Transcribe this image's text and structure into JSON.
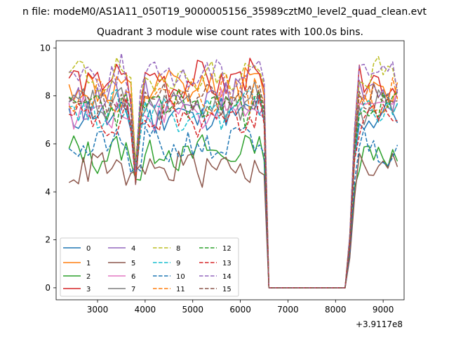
{
  "chart_data": {
    "type": "line",
    "suptitle": "n file: modeM0/AS1A11_050T19_9000005156_35989cztM0_level2_quad_clean.evt",
    "title": "Quadrant 3 module wise count rates with 100.0s bins.",
    "xlabel": "",
    "ylabel": "",
    "x_offset_label": "+3.9117e8",
    "xlim": [
      2130,
      9440
    ],
    "ylim": [
      -0.5,
      10.3
    ],
    "xticks": [
      3000,
      4000,
      5000,
      6000,
      7000,
      8000,
      9000
    ],
    "yticks": [
      0,
      2,
      4,
      6,
      8,
      10
    ],
    "legend": {
      "position": "lower-left",
      "columns": 4
    },
    "x_start": 2400,
    "x_step": 100,
    "n_points": 70,
    "series": [
      {
        "name": "0",
        "color": "#1f77b4",
        "dash": "solid",
        "level": 7.2,
        "seed": 11
      },
      {
        "name": "1",
        "color": "#ff7f0e",
        "dash": "solid",
        "level": 8.3,
        "seed": 12
      },
      {
        "name": "2",
        "color": "#2ca02c",
        "dash": "solid",
        "level": 5.6,
        "seed": 13
      },
      {
        "name": "3",
        "color": "#d62728",
        "dash": "solid",
        "level": 8.6,
        "seed": 14
      },
      {
        "name": "4",
        "color": "#9467bd",
        "dash": "solid",
        "level": 7.9,
        "seed": 15
      },
      {
        "name": "5",
        "color": "#8c564b",
        "dash": "solid",
        "level": 5.0,
        "seed": 16
      },
      {
        "name": "6",
        "color": "#e377c2",
        "dash": "solid",
        "level": 7.4,
        "seed": 17
      },
      {
        "name": "7",
        "color": "#7f7f7f",
        "dash": "solid",
        "level": 7.6,
        "seed": 18
      },
      {
        "name": "8",
        "color": "#bcbd22",
        "dash": "dashed",
        "level": 8.8,
        "seed": 19
      },
      {
        "name": "9",
        "color": "#17becf",
        "dash": "dashed",
        "level": 7.4,
        "seed": 20
      },
      {
        "name": "10",
        "color": "#1f77b4",
        "dash": "dashed",
        "level": 5.9,
        "seed": 21
      },
      {
        "name": "11",
        "color": "#ff7f0e",
        "dash": "dashed",
        "level": 8.1,
        "seed": 22
      },
      {
        "name": "12",
        "color": "#2ca02c",
        "dash": "dashed",
        "level": 7.6,
        "seed": 23
      },
      {
        "name": "13",
        "color": "#d62728",
        "dash": "dashed",
        "level": 7.1,
        "seed": 24
      },
      {
        "name": "14",
        "color": "#9467bd",
        "dash": "dashed",
        "level": 8.9,
        "seed": 25
      },
      {
        "name": "15",
        "color": "#8c564b",
        "dash": "dashed",
        "level": 7.8,
        "seed": 26
      }
    ],
    "features": {
      "dip_x": 3800,
      "gap_start_x": 6600,
      "gap_end_x": 8200
    }
  }
}
